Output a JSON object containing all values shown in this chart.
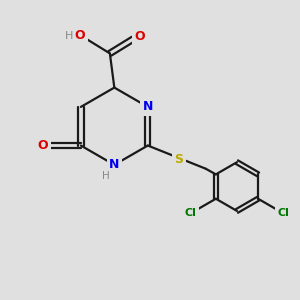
{
  "bg": "#e0e0e0",
  "bond_color": "#1a1a1a",
  "colors": {
    "N": "#0000ee",
    "O": "#dd0000",
    "S": "#bbaa00",
    "Cl": "#007700",
    "H": "#888888",
    "C": "#000000"
  },
  "lw": 1.6,
  "off": 0.09
}
